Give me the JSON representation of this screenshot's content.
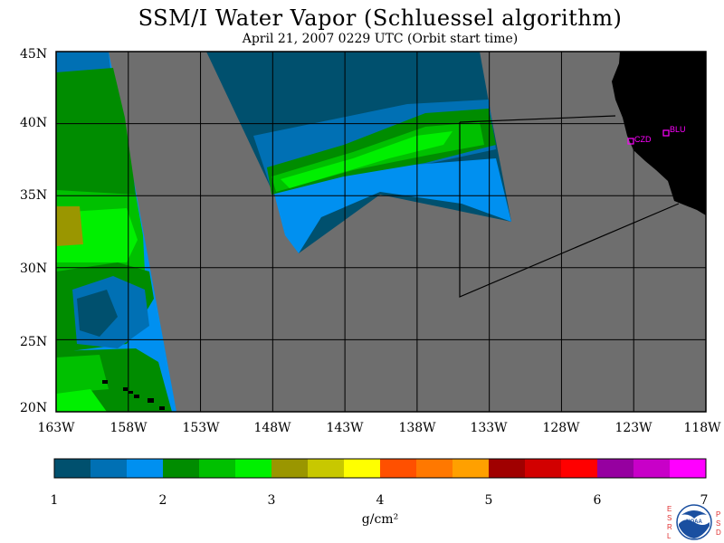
{
  "title": "SSM/I Water Vapor (Schluessel algorithm)",
  "subtitle": "April 21, 2007  0229 UTC  (Orbit start time)",
  "map": {
    "lat_labels": [
      "45N",
      "40N",
      "35N",
      "30N",
      "25N",
      "20N"
    ],
    "lon_labels": [
      "163W",
      "158W",
      "153W",
      "148W",
      "143W",
      "138W",
      "133W",
      "128W",
      "123W",
      "118W"
    ],
    "lat_range": [
      20,
      45
    ],
    "lon_range": [
      -163,
      -118
    ],
    "stations": [
      {
        "id": "CZD",
        "color": "#ff00ff"
      },
      {
        "id": "BLU",
        "color": "#ff00ff"
      }
    ],
    "no_data_color": "#6e6e6e",
    "land_color": "#000000",
    "grid": true
  },
  "colorbar": {
    "colors": [
      "#00506e",
      "#0070b4",
      "#0090f0",
      "#008c00",
      "#00c000",
      "#00f000",
      "#9a9600",
      "#c8c800",
      "#ffff00",
      "#ff5000",
      "#ff7800",
      "#ffa000",
      "#a00000",
      "#d20000",
      "#ff0000",
      "#9600a0",
      "#c800c8",
      "#ff00ff"
    ],
    "tick_labels": [
      "1",
      "2",
      "3",
      "4",
      "5",
      "6",
      "7"
    ],
    "unit": "g/cm²"
  },
  "logo": {
    "letters_left": [
      "E",
      "S",
      "R",
      "L"
    ],
    "letters_right": [
      "P",
      "S",
      "D"
    ],
    "center_text": "NOAA"
  }
}
